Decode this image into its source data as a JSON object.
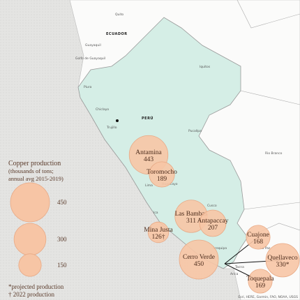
{
  "places": [
    "Quito",
    "ECUADOR",
    "Guayaquil",
    "Golfo de Guayaquil",
    "Piura",
    "Chiclayo",
    "Trujillo",
    "PERÚ",
    "Iquitos",
    "Pucallpa",
    "Rio Branco",
    "Lima",
    "Huancayo",
    "Ica",
    "Cusco",
    "Arequipa",
    "La Paz",
    "Tacna",
    "Arica"
  ],
  "legend": {
    "title": "Copper production (thousands of tons; annual avg 2015-2019)",
    "sizes": [
      450,
      300,
      150
    ],
    "notes": [
      "*projected production",
      "† 2022 production"
    ]
  },
  "mines": [
    {
      "name": "Antamina",
      "value": 443
    },
    {
      "name": "Toromocho",
      "value": 189
    },
    {
      "name": "Las Bambas",
      "value": 311
    },
    {
      "name": "Antapaccay",
      "value": 207
    },
    {
      "name": "Mina Justa",
      "value": 126,
      "value_label": "126†"
    },
    {
      "name": "Cerro Verde",
      "value": 450
    },
    {
      "name": "Cuajone",
      "value": 168
    },
    {
      "name": "Quellaveco",
      "value": 330,
      "value_label": "330*"
    },
    {
      "name": "Toquepala",
      "value": 169
    }
  ],
  "attribution": "Esri, HERE, Garmin, FAO, NOAA, USGS"
}
